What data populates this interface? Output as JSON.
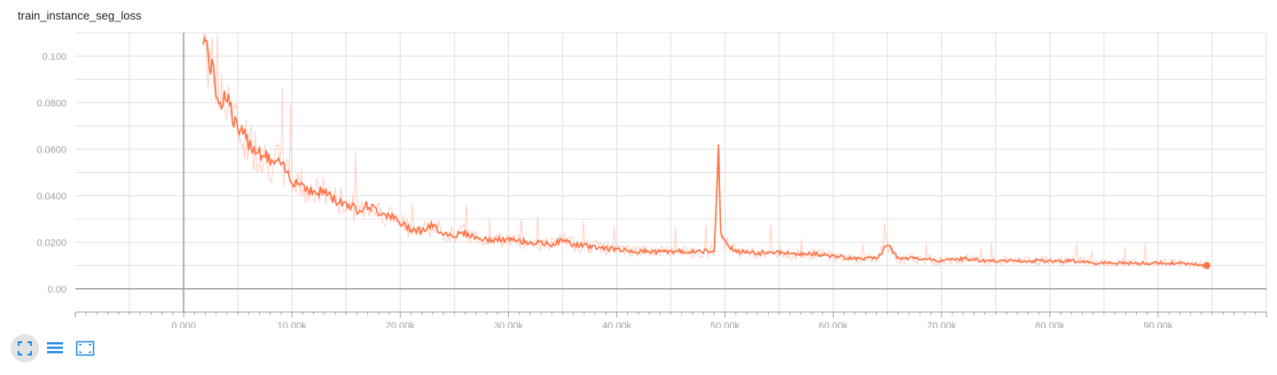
{
  "title": "train_instance_seg_loss",
  "colors": {
    "line": "#ff7043",
    "raw_line": "#ffccbc",
    "grid": "#e0e0e0",
    "axis": "#9e9e9e",
    "tick_label": "#9e9e9e",
    "toolbar_icon": "#1e88e5"
  },
  "toolbar": {
    "buttons": [
      {
        "name": "fullscreen-icon"
      },
      {
        "name": "list-icon"
      },
      {
        "name": "fit-domain-icon"
      }
    ]
  },
  "chart_data": {
    "type": "line",
    "title": "train_instance_seg_loss",
    "xlabel": "",
    "ylabel": "",
    "xlim": [
      -10000,
      100000
    ],
    "ylim": [
      -0.01,
      0.11
    ],
    "grid": true,
    "x_tick_values": [
      0,
      10000,
      20000,
      30000,
      40000,
      50000,
      60000,
      70000,
      80000,
      90000
    ],
    "x_tick_labels": [
      "0.000",
      "10.00k",
      "20.00k",
      "30.00k",
      "40.00k",
      "50.00k",
      "60.00k",
      "70.00k",
      "80.00k",
      "90.00k"
    ],
    "y_tick_values": [
      0,
      0.02,
      0.04,
      0.06,
      0.08,
      0.1
    ],
    "y_tick_labels": [
      "0.00",
      "0.0200",
      "0.0400",
      "0.0600",
      "0.0800",
      "0.100"
    ],
    "series": [
      {
        "name": "",
        "x": [
          1800,
          2500,
          3000,
          3500,
          4000,
          4500,
          5000,
          6000,
          7000,
          8000,
          9000,
          10000,
          11000,
          12000,
          13000,
          14000,
          15000,
          16000,
          17000,
          18000,
          19000,
          20000,
          21000,
          22000,
          23000,
          24000,
          25000,
          26000,
          27000,
          28000,
          29000,
          30000,
          32000,
          34000,
          35000,
          36000,
          38000,
          40000,
          42000,
          44000,
          46000,
          48000,
          49000,
          49400,
          49600,
          50000,
          51000,
          52000,
          53000,
          54000,
          56000,
          58000,
          60000,
          62000,
          64000,
          65000,
          66000,
          68000,
          70000,
          72000,
          74000,
          76000,
          78000,
          80000,
          82000,
          84000,
          86000,
          88000,
          90000,
          92000,
          94500
        ],
        "y": [
          0.11,
          0.096,
          0.086,
          0.08,
          0.085,
          0.074,
          0.068,
          0.063,
          0.059,
          0.055,
          0.053,
          0.047,
          0.045,
          0.041,
          0.042,
          0.038,
          0.037,
          0.034,
          0.036,
          0.033,
          0.032,
          0.028,
          0.026,
          0.025,
          0.027,
          0.024,
          0.023,
          0.024,
          0.022,
          0.021,
          0.021,
          0.021,
          0.02,
          0.019,
          0.021,
          0.019,
          0.018,
          0.017,
          0.016,
          0.016,
          0.016,
          0.016,
          0.017,
          0.059,
          0.025,
          0.02,
          0.016,
          0.016,
          0.015,
          0.016,
          0.015,
          0.015,
          0.014,
          0.013,
          0.013,
          0.019,
          0.013,
          0.013,
          0.012,
          0.013,
          0.012,
          0.012,
          0.012,
          0.012,
          0.012,
          0.011,
          0.011,
          0.011,
          0.011,
          0.011,
          0.01
        ]
      }
    ],
    "end_point": {
      "x": 94500,
      "y": 0.01
    }
  }
}
